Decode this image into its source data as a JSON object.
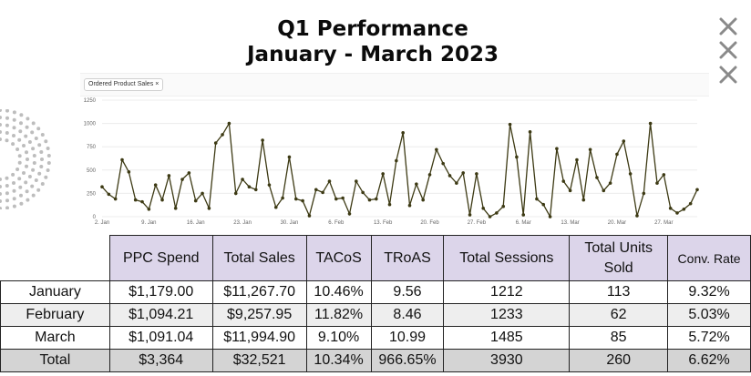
{
  "header": {
    "title_line1": "Q1 Performance",
    "title_line2": "January - March 2023"
  },
  "controls": {
    "close_icons": [
      "close-icon",
      "close-icon",
      "close-icon"
    ]
  },
  "chart_filter": {
    "chip_label": "Ordered Product Sales",
    "chip_remove": "×"
  },
  "chart_data": {
    "type": "line",
    "title": "",
    "series": [
      {
        "name": "Ordered Product Sales",
        "color": "#3d3a14",
        "x_index": [
          0,
          1,
          2,
          3,
          4,
          5,
          6,
          7,
          8,
          9,
          10,
          11,
          12,
          13,
          14,
          15,
          16,
          17,
          18,
          19,
          20,
          21,
          22,
          23,
          24,
          25,
          26,
          27,
          28,
          29,
          30,
          31,
          32,
          33,
          34,
          35,
          36,
          37,
          38,
          39,
          40,
          41,
          42,
          43,
          44,
          45,
          46,
          47,
          48,
          49,
          50,
          51,
          52,
          53,
          54,
          55,
          56,
          57,
          58,
          59,
          60,
          61,
          62,
          63,
          64,
          65,
          66,
          67,
          68,
          69,
          70,
          71,
          72,
          73,
          74,
          75,
          76,
          77,
          78,
          79,
          80,
          81,
          82,
          83,
          84,
          85,
          86,
          87,
          88,
          89
        ],
        "values": [
          320,
          240,
          190,
          610,
          480,
          180,
          160,
          80,
          340,
          180,
          440,
          90,
          400,
          470,
          170,
          250,
          90,
          790,
          880,
          1000,
          250,
          400,
          320,
          290,
          820,
          340,
          100,
          200,
          640,
          190,
          170,
          10,
          290,
          260,
          380,
          190,
          200,
          30,
          380,
          260,
          180,
          190,
          460,
          130,
          600,
          900,
          120,
          350,
          180,
          450,
          720,
          570,
          440,
          360,
          470,
          20,
          460,
          90,
          0,
          40,
          110,
          990,
          640,
          20,
          910,
          190,
          130,
          0,
          730,
          380,
          280,
          610,
          180,
          720,
          420,
          280,
          360,
          670,
          810,
          460,
          10,
          250,
          1000,
          360,
          450,
          90,
          40,
          80,
          140,
          290
        ]
      }
    ],
    "x_tick_labels": [
      "2. Jan",
      "9. Jan",
      "16. Jan",
      "23. Jan",
      "30. Jan",
      "6. Feb",
      "13. Feb",
      "20. Feb",
      "27. Feb",
      "6. Mar",
      "13. Mar",
      "20. Mar",
      "27. Mar"
    ],
    "x_tick_index": [
      0,
      7,
      14,
      21,
      28,
      35,
      42,
      49,
      56,
      63,
      70,
      77,
      84
    ],
    "y_ticks": [
      0,
      250,
      500,
      750,
      1000,
      1250
    ],
    "ylim": [
      0,
      1250
    ],
    "grid": "horizontal",
    "legend": "chip top-left"
  },
  "table": {
    "headers": [
      "",
      "PPC Spend",
      "Total Sales",
      "TACoS",
      "TRoAS",
      "Total Sessions",
      "Total Units Sold",
      "Conv. Rate"
    ],
    "rows": [
      [
        "January",
        "$1,179.00",
        "$11,267.70",
        "10.46%",
        "9.56",
        "1212",
        "113",
        "9.32%"
      ],
      [
        "February",
        "$1,094.21",
        "$9,257.95",
        "11.82%",
        "8.46",
        "1233",
        "62",
        "5.03%"
      ],
      [
        "March",
        "$1,091.04",
        "$11,994.90",
        "9.10%",
        "10.99",
        "1485",
        "85",
        "5.72%"
      ],
      [
        "Total",
        "$3,364",
        "$32,521",
        "10.34%",
        "966.65%",
        "3930",
        "260",
        "6.62%"
      ]
    ]
  },
  "colors": {
    "header_fill": "#dcd5ea",
    "alt_row_fill": "#eeeeee",
    "total_row_fill": "#d4d4d4",
    "line_color": "#3d3a14",
    "grid_color": "#ececec"
  }
}
